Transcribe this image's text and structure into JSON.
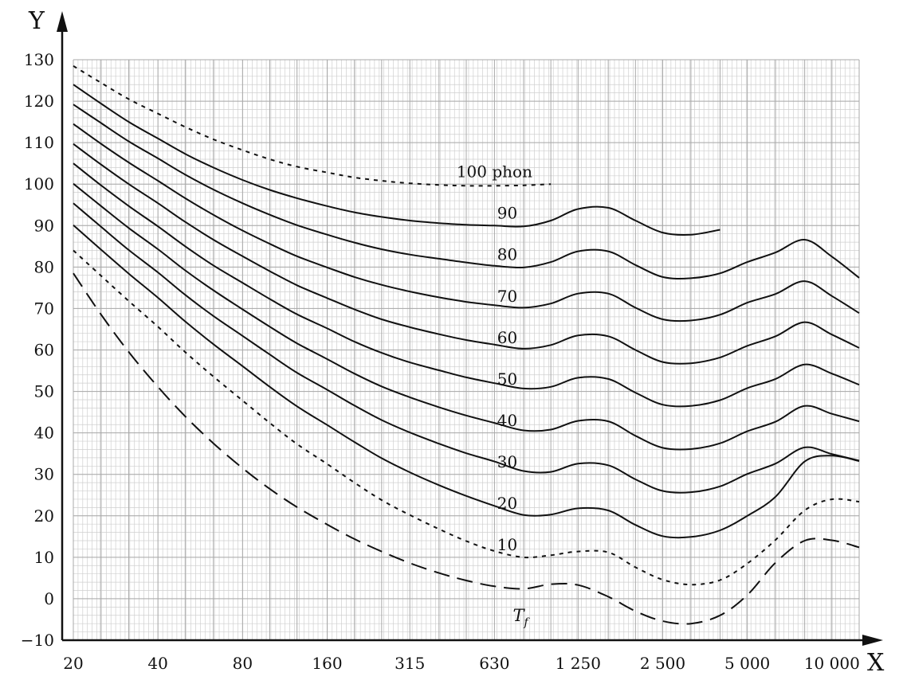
{
  "chart_data": {
    "type": "line",
    "xlabel": "X",
    "ylabel": "Y",
    "x_scale": "log",
    "xlim": [
      20,
      12500
    ],
    "ylim": [
      -10,
      130
    ],
    "x_ticks": [
      20,
      40,
      80,
      160,
      315,
      630,
      1250,
      2500,
      5000,
      10000
    ],
    "x_tick_labels": [
      "20",
      "40",
      "80",
      "160",
      "315",
      "630",
      "1 250",
      "2 500",
      "5 000",
      "10 000"
    ],
    "y_ticks": [
      -10,
      0,
      10,
      20,
      30,
      40,
      50,
      60,
      70,
      80,
      90,
      100,
      110,
      120,
      130
    ],
    "y_tick_labels": [
      "−10",
      "0",
      "10",
      "20",
      "30",
      "40",
      "50",
      "60",
      "70",
      "80",
      "90",
      "100",
      "110",
      "120",
      "130"
    ],
    "grid": true,
    "x_grid_minor": [
      25,
      31.5,
      40,
      50,
      63,
      80,
      100,
      125,
      160,
      200,
      250,
      315,
      400,
      500,
      630,
      800,
      1000,
      1250,
      1600,
      2000,
      2500,
      3150,
      4000,
      5000,
      6300,
      8000,
      10000,
      12500
    ],
    "series": [
      {
        "name": "100 phon",
        "style": "short-dash",
        "x": [
          20,
          25,
          31.5,
          40,
          50,
          63,
          80,
          100,
          125,
          160,
          200,
          250,
          315,
          400,
          500,
          630,
          800,
          1000
        ],
        "y": [
          128.5,
          124.5,
          120.5,
          117,
          113.8,
          110.8,
          108.2,
          106,
          104.2,
          102.8,
          101.6,
          100.8,
          100.2,
          99.8,
          99.6,
          99.6,
          99.7,
          100
        ]
      },
      {
        "name": "90",
        "style": "solid",
        "x": [
          20,
          25,
          31.5,
          40,
          50,
          63,
          80,
          100,
          125,
          160,
          200,
          250,
          315,
          400,
          500,
          630,
          800,
          1000,
          1250,
          1600,
          2000,
          2500,
          3150,
          4000
        ],
        "y": [
          124,
          119.5,
          115,
          111,
          107.3,
          104,
          101,
          98.6,
          96.6,
          94.7,
          93.2,
          92.1,
          91.2,
          90.6,
          90.2,
          90,
          89.8,
          91.2,
          94,
          94.3,
          91.2,
          88.3,
          87.8,
          89
        ]
      },
      {
        "name": "80",
        "style": "solid",
        "x": [
          20,
          25,
          31.5,
          40,
          50,
          63,
          80,
          100,
          125,
          160,
          200,
          250,
          315,
          400,
          500,
          630,
          800,
          1000,
          1250,
          1600,
          2000,
          2500,
          3150,
          4000,
          5000,
          6300,
          8000,
          10000,
          12500
        ],
        "y": [
          119.2,
          114.8,
          110.3,
          106.2,
          102.3,
          98.7,
          95.4,
          92.6,
          90.1,
          87.8,
          85.9,
          84.3,
          83,
          82,
          81.1,
          80.3,
          79.9,
          81.2,
          83.8,
          83.8,
          80.5,
          77.6,
          77.3,
          78.5,
          81.2,
          83.5,
          86.6,
          82.5,
          77.4
        ]
      },
      {
        "name": "70",
        "style": "solid",
        "x": [
          20,
          25,
          31.5,
          40,
          50,
          63,
          80,
          100,
          125,
          160,
          200,
          250,
          315,
          400,
          500,
          630,
          800,
          1000,
          1250,
          1600,
          2000,
          2500,
          3150,
          4000,
          5000,
          6300,
          8000,
          10000,
          12500
        ],
        "y": [
          114.5,
          109.8,
          105.2,
          100.8,
          96.6,
          92.6,
          88.8,
          85.6,
          82.6,
          79.9,
          77.6,
          75.7,
          74.1,
          72.7,
          71.6,
          70.8,
          70.2,
          71.2,
          73.6,
          73.6,
          70.2,
          67.4,
          67.1,
          68.5,
          71.4,
          73.5,
          76.6,
          73,
          68.9
        ]
      },
      {
        "name": "60",
        "style": "solid",
        "x": [
          20,
          25,
          31.5,
          40,
          50,
          63,
          80,
          100,
          125,
          160,
          200,
          250,
          315,
          400,
          500,
          630,
          800,
          1000,
          1250,
          1600,
          2000,
          2500,
          3150,
          4000,
          5000,
          6300,
          8000,
          10000,
          12500
        ],
        "y": [
          109.7,
          104.8,
          100,
          95.4,
          90.9,
          86.6,
          82.6,
          79,
          75.6,
          72.5,
          69.8,
          67.4,
          65.5,
          63.8,
          62.4,
          61.3,
          60.3,
          61.2,
          63.5,
          63.3,
          60,
          57.1,
          56.8,
          58.2,
          61,
          63.3,
          66.7,
          63.7,
          60.5
        ]
      },
      {
        "name": "50",
        "style": "solid",
        "x": [
          20,
          25,
          31.5,
          40,
          50,
          63,
          80,
          100,
          125,
          160,
          200,
          250,
          315,
          400,
          500,
          630,
          800,
          1000,
          1250,
          1600,
          2000,
          2500,
          3150,
          4000,
          5000,
          6300,
          8000,
          10000,
          12500
        ],
        "y": [
          105,
          99.8,
          94.7,
          89.8,
          85,
          80.4,
          76.2,
          72.3,
          68.6,
          65.2,
          62,
          59.3,
          57,
          55.1,
          53.4,
          52,
          50.7,
          51.1,
          53.3,
          53,
          49.7,
          46.8,
          46.5,
          47.9,
          50.8,
          53,
          56.5,
          54.3,
          51.6
        ]
      },
      {
        "name": "40",
        "style": "solid",
        "x": [
          20,
          25,
          31.5,
          40,
          50,
          63,
          80,
          100,
          125,
          160,
          200,
          250,
          315,
          400,
          500,
          630,
          800,
          1000,
          1250,
          1600,
          2000,
          2500,
          3150,
          4000,
          5000,
          6300,
          8000,
          10000,
          12500
        ],
        "y": [
          100.1,
          94.8,
          89.4,
          84.3,
          79.2,
          74.4,
          69.8,
          65.6,
          61.6,
          57.8,
          54.3,
          51.2,
          48.6,
          46.2,
          44.2,
          42.4,
          40.6,
          40.8,
          42.9,
          42.8,
          39.3,
          36.4,
          36.1,
          37.5,
          40.4,
          42.7,
          46.5,
          44.6,
          42.8
        ]
      },
      {
        "name": "30",
        "style": "solid",
        "x": [
          20,
          25,
          31.5,
          40,
          50,
          63,
          80,
          100,
          125,
          160,
          200,
          250,
          315,
          400,
          500,
          630,
          800,
          1000,
          1250,
          1600,
          2000,
          2500,
          3150,
          4000,
          5000,
          6300,
          8000,
          10000,
          12500
        ],
        "y": [
          95.4,
          89.8,
          84.1,
          78.7,
          73.3,
          68.2,
          63.4,
          58.9,
          54.5,
          50.4,
          46.6,
          43.1,
          40.1,
          37.4,
          35.1,
          33.1,
          30.8,
          30.6,
          32.6,
          32.2,
          28.8,
          26,
          25.7,
          27.1,
          30.1,
          32.6,
          36.5,
          34.9,
          33.3
        ]
      },
      {
        "name": "20",
        "style": "solid",
        "x": [
          20,
          25,
          31.5,
          40,
          50,
          63,
          80,
          100,
          125,
          160,
          200,
          250,
          315,
          400,
          500,
          630,
          800,
          1000,
          1250,
          1600,
          2000,
          2500,
          3150,
          4000,
          5000,
          6300,
          8000,
          10000,
          12500
        ],
        "y": [
          90.1,
          84.3,
          78.4,
          72.6,
          66.9,
          61.4,
          56.1,
          51.1,
          46.4,
          41.9,
          37.8,
          33.9,
          30.5,
          27.4,
          24.8,
          22.4,
          20.2,
          20.3,
          21.8,
          21.3,
          17.8,
          15.1,
          14.9,
          16.5,
          20,
          24.6,
          33.1,
          34.5,
          33.2
        ]
      },
      {
        "name": "10",
        "style": "short-dash",
        "x": [
          20,
          25,
          31.5,
          40,
          50,
          63,
          80,
          100,
          125,
          160,
          200,
          250,
          315,
          400,
          500,
          630,
          800,
          1000,
          1250,
          1600,
          2000,
          2500,
          3150,
          4000,
          5000,
          6300,
          8000,
          10000,
          12500
        ],
        "y": [
          84,
          78,
          71.8,
          65.6,
          59.5,
          53.6,
          47.8,
          42.4,
          37.3,
          32.5,
          28,
          23.8,
          20.2,
          16.8,
          13.9,
          11.5,
          10,
          10.5,
          11.4,
          11.2,
          7.6,
          4.6,
          3.4,
          4.5,
          8.5,
          14.2,
          21.3,
          24,
          23.4
        ]
      },
      {
        "name": "Tf",
        "style": "long-dash",
        "x": [
          20,
          25,
          31.5,
          40,
          50,
          63,
          80,
          100,
          125,
          160,
          200,
          250,
          315,
          400,
          500,
          630,
          800,
          1000,
          1250,
          1600,
          2000,
          2500,
          3150,
          4000,
          5000,
          6300,
          8000,
          10000,
          12500
        ],
        "y": [
          78.5,
          68.7,
          59.5,
          51.1,
          44,
          37.5,
          31.5,
          26.5,
          22.1,
          17.9,
          14.4,
          11.4,
          8.6,
          6.2,
          4.4,
          3,
          2.4,
          3.5,
          3.3,
          0.5,
          -3,
          -5.4,
          -6,
          -4,
          0.9,
          8.7,
          14,
          14.1,
          12.4
        ]
      }
    ],
    "curve_labels": [
      {
        "series": "100 phon",
        "text": "100 phon",
        "x": 630,
        "y": 103
      },
      {
        "series": "90",
        "text": "90",
        "x": 700,
        "y": 93
      },
      {
        "series": "80",
        "text": "80",
        "x": 700,
        "y": 83
      },
      {
        "series": "70",
        "text": "70",
        "x": 700,
        "y": 73
      },
      {
        "series": "60",
        "text": "60",
        "x": 700,
        "y": 63
      },
      {
        "series": "50",
        "text": "50",
        "x": 700,
        "y": 53
      },
      {
        "series": "40",
        "text": "40",
        "x": 700,
        "y": 43
      },
      {
        "series": "30",
        "text": "30",
        "x": 700,
        "y": 33
      },
      {
        "series": "20",
        "text": "20",
        "x": 700,
        "y": 23
      },
      {
        "series": "10",
        "text": "10",
        "x": 700,
        "y": 13
      },
      {
        "series": "Tf",
        "text": "T",
        "subscript": "f",
        "x": 780,
        "y": -4
      }
    ]
  }
}
